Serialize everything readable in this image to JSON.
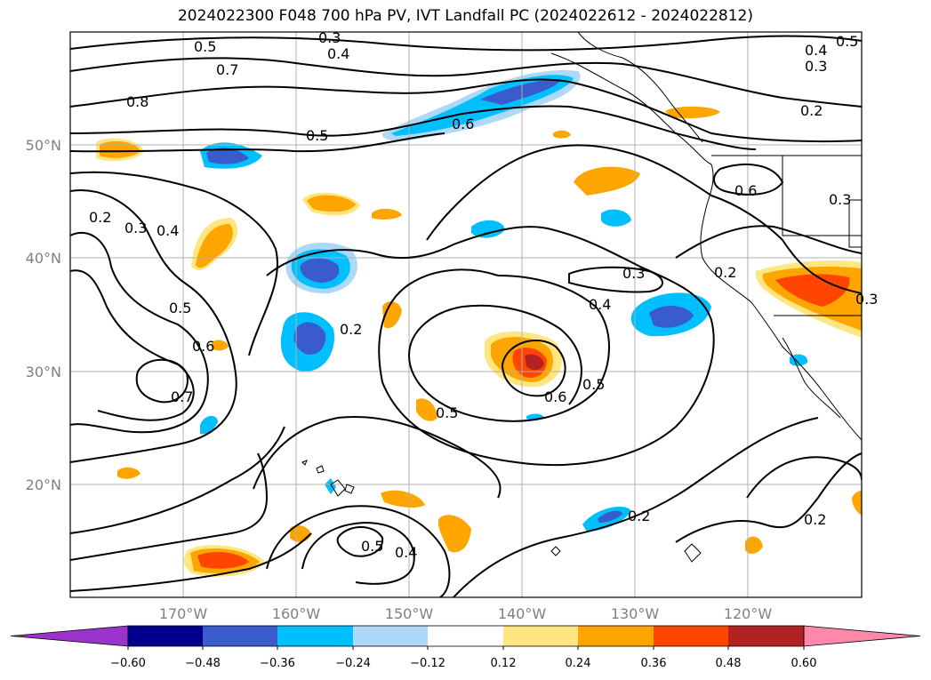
{
  "title": "2024022300 F048 700 hPa PV, IVT Landfall PC (2024022612 - 2024022812)",
  "map": {
    "lat_ticks": [
      "50°N",
      "40°N",
      "30°N",
      "20°N"
    ],
    "lon_ticks": [
      "170°W",
      "160°W",
      "150°W",
      "140°W",
      "130°W",
      "120°W"
    ],
    "contour_labels": [
      "0.5",
      "0.7",
      "0.8",
      "0.4",
      "0.3",
      "0.5",
      "0.6",
      "0.5",
      "0.4",
      "0.3",
      "0.2",
      "0.6",
      "0.3",
      "0.2",
      "0.3",
      "0.4",
      "0.5",
      "0.6",
      "0.7",
      "0.2",
      "0.5",
      "0.4",
      "0.3",
      "0.6",
      "0.5",
      "0.2",
      "0.3",
      "0.5",
      "0.4",
      "0.2",
      "0.2"
    ]
  },
  "colorbar": {
    "ticks": [
      "−0.60",
      "−0.48",
      "−0.36",
      "−0.24",
      "−0.12",
      "0.12",
      "0.24",
      "0.36",
      "0.48",
      "0.60"
    ],
    "colors": [
      "#9933cc",
      "#00008b",
      "#3a5bcc",
      "#00bfff",
      "#add8f7",
      "#ffffff",
      "#ffe680",
      "#ffa500",
      "#ff4500",
      "#b22222",
      "#ff88aa"
    ]
  }
}
